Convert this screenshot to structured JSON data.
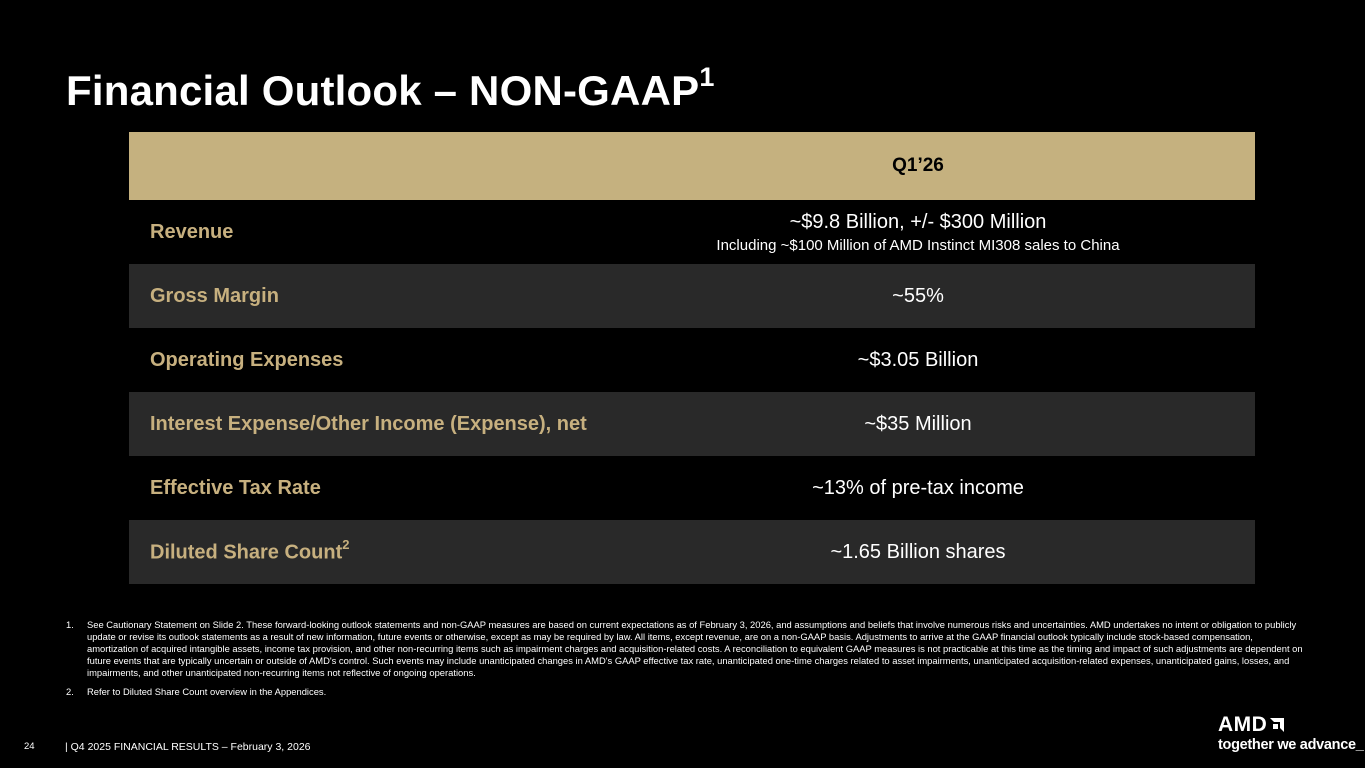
{
  "slide": {
    "title": "Financial Outlook – NON-GAAP",
    "title_sup": "1"
  },
  "table": {
    "column_header": "Q1’26",
    "rows": [
      {
        "label": "Revenue",
        "value": "~$9.8 Billion, +/- $300 Million",
        "sub": "Including ~$100 Million of AMD Instinct MI308 sales to China"
      },
      {
        "label": "Gross Margin",
        "value": "~55%"
      },
      {
        "label": "Operating Expenses",
        "value": "~$3.05 Billion"
      },
      {
        "label": "Interest Expense/Other Income (Expense), net",
        "value": "~$35 Million"
      },
      {
        "label": "Effective Tax Rate",
        "value": "~13% of pre-tax income"
      },
      {
        "label": "Diluted Share Count",
        "label_sup": "2",
        "value": "~1.65 Billion shares"
      }
    ]
  },
  "footnotes": [
    {
      "num": "1.",
      "text": "See Cautionary Statement on Slide 2. These forward-looking outlook statements and non-GAAP measures are based on current expectations as of February 3, 2026, and assumptions and beliefs that involve numerous risks and uncertainties. AMD undertakes no intent or obligation to publicly update or revise its outlook statements as a result of new information, future events or otherwise, except as may be required by law. All items, except revenue, are on a non-GAAP basis. Adjustments to arrive at the GAAP financial outlook typically include stock-based compensation, amortization of acquired intangible assets, income tax provision, and other non-recurring items such as impairment charges and acquisition-related costs. A reconciliation to equivalent GAAP measures is not practicable at this time as the timing and impact of such adjustments are dependent on future events that are typically uncertain or outside of AMD's control. Such events may include unanticipated changes in AMD's GAAP effective tax rate, unanticipated one-time charges related to asset impairments, unanticipated acquisition-related expenses, unanticipated gains, losses, and impairments, and other unanticipated non-recurring items not reflective of ongoing operations."
    },
    {
      "num": "2.",
      "text": "Refer to Diluted Share Count overview in the Appendices."
    }
  ],
  "footer": {
    "page_number": "24",
    "text": "|   Q4 2025 FINANCIAL RESULTS – February 3, 2026"
  },
  "logo": {
    "wordmark": "AMD",
    "tagline": "together we advance_"
  },
  "colors": {
    "background": "#000000",
    "header_band": "#c5b17f",
    "label_gold": "#c7b07f",
    "alt_row": "#292929"
  }
}
